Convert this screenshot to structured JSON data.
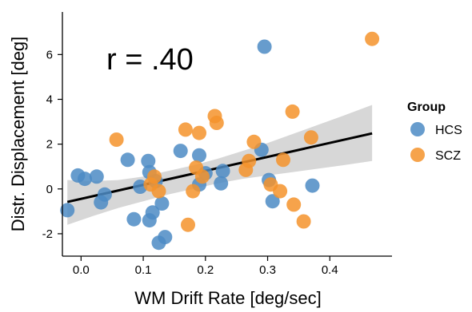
{
  "chart_data": {
    "type": "scatter",
    "xlabel": "WM Drift Rate [deg/sec]",
    "ylabel": "Distr. Displacement [deg]",
    "xlim": [
      -0.03,
      0.5
    ],
    "ylim": [
      -3.0,
      7.9
    ],
    "x_ticks": [
      0.0,
      0.1,
      0.2,
      0.3,
      0.4
    ],
    "x_tick_labels": [
      "0.0",
      "0.1",
      "0.2",
      "0.3",
      "0.4"
    ],
    "y_ticks": [
      -2,
      0,
      2,
      4,
      6
    ],
    "y_tick_labels": [
      "-2",
      "0",
      "2",
      "4",
      "6"
    ],
    "grid": false,
    "annotation": "r = .40",
    "legend": {
      "title": "Group",
      "placement": "right"
    },
    "series": [
      {
        "name": "HCS",
        "color": "#4C8BC4",
        "points": [
          [
            -0.022,
            -0.95
          ],
          [
            -0.005,
            0.6
          ],
          [
            0.006,
            0.45
          ],
          [
            0.025,
            0.55
          ],
          [
            0.032,
            -0.6
          ],
          [
            0.038,
            -0.25
          ],
          [
            0.075,
            1.3
          ],
          [
            0.085,
            -1.35
          ],
          [
            0.095,
            0.1
          ],
          [
            0.108,
            1.25
          ],
          [
            0.11,
            0.75
          ],
          [
            0.11,
            -1.4
          ],
          [
            0.115,
            -1.05
          ],
          [
            0.12,
            0.35
          ],
          [
            0.125,
            -2.4
          ],
          [
            0.13,
            -0.65
          ],
          [
            0.135,
            -2.15
          ],
          [
            0.16,
            1.7
          ],
          [
            0.19,
            1.5
          ],
          [
            0.19,
            0.2
          ],
          [
            0.2,
            0.7
          ],
          [
            0.225,
            0.25
          ],
          [
            0.228,
            0.8
          ],
          [
            0.29,
            1.75
          ],
          [
            0.295,
            6.35
          ],
          [
            0.302,
            0.4
          ],
          [
            0.308,
            -0.55
          ],
          [
            0.372,
            0.15
          ]
        ]
      },
      {
        "name": "SCZ",
        "color": "#F5932B",
        "points": [
          [
            0.057,
            2.2
          ],
          [
            0.112,
            0.2
          ],
          [
            0.118,
            0.55
          ],
          [
            0.125,
            -0.1
          ],
          [
            0.168,
            2.65
          ],
          [
            0.172,
            -1.6
          ],
          [
            0.18,
            -0.1
          ],
          [
            0.185,
            0.95
          ],
          [
            0.19,
            2.5
          ],
          [
            0.195,
            0.55
          ],
          [
            0.215,
            3.25
          ],
          [
            0.218,
            2.95
          ],
          [
            0.265,
            0.85
          ],
          [
            0.27,
            1.25
          ],
          [
            0.278,
            2.1
          ],
          [
            0.305,
            0.2
          ],
          [
            0.32,
            -0.1
          ],
          [
            0.325,
            1.3
          ],
          [
            0.34,
            3.45
          ],
          [
            0.342,
            -0.7
          ],
          [
            0.358,
            -1.45
          ],
          [
            0.37,
            2.3
          ],
          [
            0.468,
            6.7
          ]
        ]
      }
    ],
    "regression": {
      "x": [
        -0.022,
        0.468
      ],
      "y": [
        -0.58,
        2.48
      ],
      "ci_x": [
        -0.022,
        0.02,
        0.06,
        0.1,
        0.14,
        0.18,
        0.22,
        0.26,
        0.3,
        0.34,
        0.38,
        0.42,
        0.468
      ],
      "ci_lower": [
        -1.6,
        -1.2,
        -0.85,
        -0.55,
        -0.25,
        0.0,
        0.25,
        0.45,
        0.6,
        0.75,
        0.9,
        1.05,
        1.25
      ],
      "ci_upper": [
        0.4,
        0.35,
        0.4,
        0.55,
        0.8,
        1.05,
        1.35,
        1.7,
        2.05,
        2.45,
        2.85,
        3.25,
        3.75
      ],
      "line_color": "#000000",
      "band_color": "#bdbdbd"
    }
  }
}
